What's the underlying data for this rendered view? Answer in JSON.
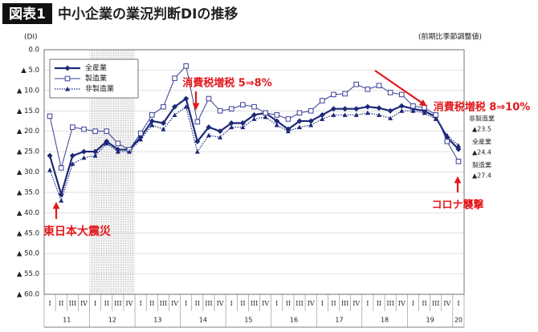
{
  "chart_data": {
    "type": "line",
    "title_tag": "図表1",
    "title": "中小企業の業況判断DIの推移",
    "subtitle": "(前期比季節調整値)",
    "y_label": "(DI)",
    "categories": [
      "I",
      "II",
      "III",
      "IV",
      "I",
      "II",
      "III",
      "IV",
      "I",
      "II",
      "III",
      "IV",
      "I",
      "II",
      "III",
      "IV",
      "I",
      "II",
      "III",
      "IV",
      "I",
      "II",
      "III",
      "IV",
      "I",
      "II",
      "III",
      "IV",
      "I",
      "II",
      "III",
      "IV",
      "I",
      "II",
      "III",
      "IV",
      "I"
    ],
    "year_labels": [
      "11",
      "12",
      "13",
      "14",
      "15",
      "16",
      "17",
      "18",
      "19",
      "20"
    ],
    "ylim": [
      -60,
      0
    ],
    "yticks": [
      {
        "value": 0,
        "label": "0.0"
      },
      {
        "value": -5,
        "label": "▲ 5.0"
      },
      {
        "value": -10,
        "label": "▲ 10.0"
      },
      {
        "value": -15,
        "label": "▲ 15.0"
      },
      {
        "value": -20,
        "label": "▲ 20.0"
      },
      {
        "value": -25,
        "label": "▲ 25.0"
      },
      {
        "value": -30,
        "label": "▲ 30.0"
      },
      {
        "value": -35,
        "label": "▲ 35.0"
      },
      {
        "value": -40,
        "label": "▲ 40.0"
      },
      {
        "value": -45,
        "label": "▲ 45.0"
      },
      {
        "value": -50,
        "label": "▲ 50.0"
      },
      {
        "value": -55,
        "label": "▲ 55.0"
      },
      {
        "value": -60,
        "label": "▲ 60.0"
      }
    ],
    "grid": true,
    "legend": "top-left",
    "series": [
      {
        "name": "全産業",
        "color": "#1c2878",
        "marker": "diamond",
        "dash": "solid",
        "values": [
          -26,
          -35.5,
          -26,
          -25,
          -25,
          -22.5,
          -24.5,
          -24.5,
          -21.5,
          -17.5,
          -18,
          -14,
          -12,
          -22.5,
          -19,
          -20,
          -18,
          -18,
          -16,
          -15.5,
          -17.5,
          -19.5,
          -17.5,
          -17.5,
          -16,
          -14.5,
          -14.5,
          -14.5,
          -14,
          -14.3,
          -15,
          -13.8,
          -14.5,
          -15,
          -16.5,
          -21.5,
          -24.4
        ],
        "value_labels": [
          null,
          null,
          null,
          null,
          null,
          null,
          null,
          null,
          null,
          null,
          null,
          null,
          null,
          null,
          null,
          null,
          null,
          null,
          null,
          null,
          null,
          null,
          null,
          null,
          null,
          null,
          null,
          null,
          null,
          null,
          null,
          null,
          null,
          null,
          null,
          null,
          "▲24.4"
        ]
      },
      {
        "name": "製造業",
        "color": "#3a3f96",
        "marker": "square",
        "dash": "solid",
        "values": [
          -16.3,
          -29,
          -19,
          -19.5,
          -20,
          -20,
          -23,
          -24.5,
          -20.5,
          -16,
          -14,
          -7,
          -4,
          -17.7,
          -12,
          -15,
          -14.5,
          -13.5,
          -14,
          -15.5,
          -16,
          -17,
          -15.5,
          -15,
          -12.5,
          -11,
          -10.8,
          -8.5,
          -9.7,
          -8.8,
          -10.5,
          -11,
          -13.8,
          -14.2,
          -16,
          -22.5,
          -27.4
        ],
        "value_labels": [
          null,
          null,
          null,
          null,
          null,
          null,
          null,
          null,
          null,
          null,
          null,
          null,
          null,
          null,
          null,
          null,
          null,
          null,
          null,
          null,
          null,
          null,
          null,
          null,
          null,
          null,
          null,
          null,
          null,
          null,
          null,
          null,
          null,
          null,
          null,
          null,
          "▲27.4"
        ]
      },
      {
        "name": "非製造業",
        "color": "#1c2878",
        "marker": "triangle",
        "dash": "dotted",
        "values": [
          -29.5,
          -37,
          -28,
          -26.5,
          -26,
          -23,
          -25,
          -25,
          -22,
          -18.5,
          -19.5,
          -16,
          -14,
          -25,
          -21,
          -21.5,
          -19,
          -19,
          -17,
          -16.5,
          -18.5,
          -20,
          -19,
          -18.5,
          -17,
          -16,
          -16,
          -16,
          -15.5,
          -16,
          -16.8,
          -15,
          -15,
          -15.5,
          -17,
          -21,
          -23.5
        ],
        "value_labels": [
          null,
          null,
          null,
          null,
          null,
          null,
          null,
          null,
          null,
          null,
          null,
          null,
          null,
          null,
          null,
          null,
          null,
          null,
          null,
          null,
          null,
          null,
          null,
          null,
          null,
          null,
          null,
          null,
          null,
          null,
          null,
          null,
          null,
          null,
          null,
          null,
          "▲23.5"
        ]
      }
    ],
    "annotations": [
      "消費税増税 5⇒8%",
      "東日本大震災",
      "消費税増税 8⇒10%",
      "コロナ襲撃"
    ],
    "annotation_color": "#e3171b"
  }
}
